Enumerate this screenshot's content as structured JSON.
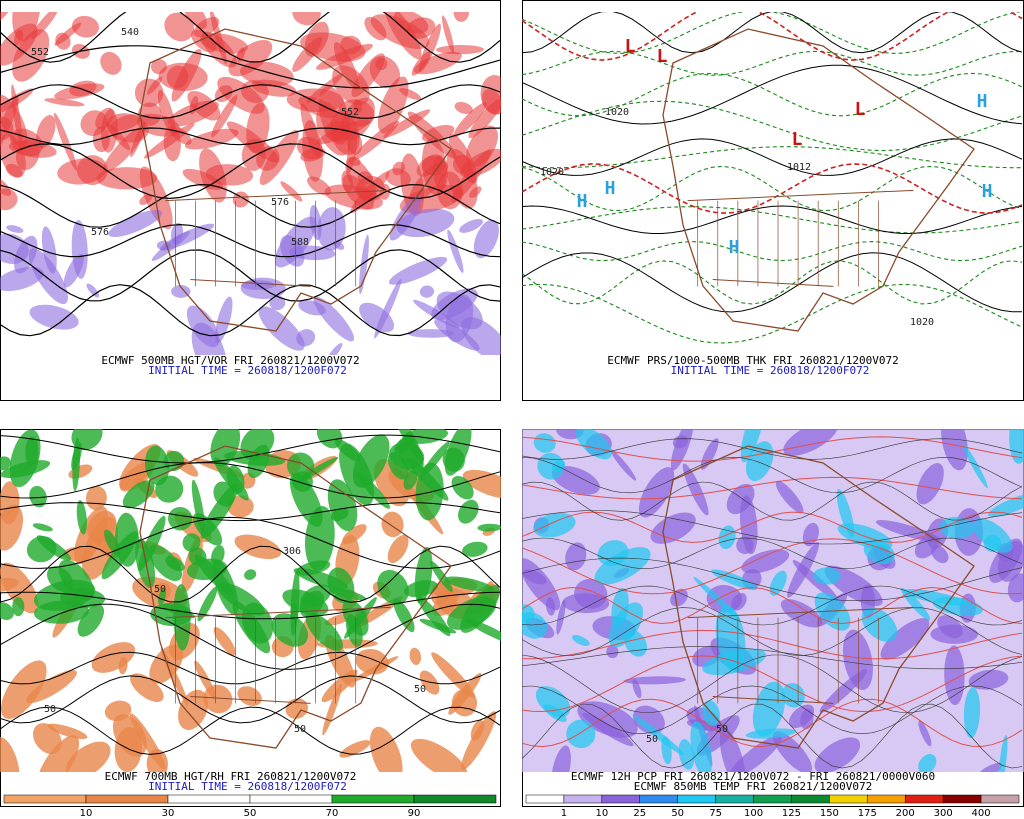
{
  "panels": [
    {
      "caption": "ECMWF 500MB HGT/VOR FRI 260821/1200V072",
      "initial_time": "INITIAL TIME = 260818/1200F072",
      "map_labels": [
        "552",
        "552",
        "576",
        "576",
        "588",
        "540"
      ]
    },
    {
      "caption": "ECMWF PRS/1000-500MB THK FRI 260821/1200V072",
      "initial_time": "INITIAL TIME = 260818/1200F072",
      "map_labels": [
        "H",
        "H",
        "H",
        "H",
        "H",
        "L",
        "L",
        "L",
        "L",
        "1020",
        "1012",
        "1020",
        "1020"
      ]
    },
    {
      "caption": "ECMWF 700MB HGT/RH FRI 260821/1200V072",
      "initial_time": "INITIAL TIME = 260818/1200F072",
      "map_labels": [
        "306",
        "50",
        "50",
        "50",
        "50"
      ],
      "colorbar": {
        "colors": [
          "#f2a366",
          "#e8864a",
          "#ffffff",
          "#ffffff",
          "#1faa2a",
          "#11882a"
        ],
        "labels": [
          10,
          30,
          50,
          70,
          90
        ]
      }
    },
    {
      "caption": "ECMWF 12H PCP FRI 260821/1200V072 - FRI 260821/0000V060",
      "caption2": "ECMWF 850MB TEMP FRI 260821/1200V072",
      "map_labels": [
        "50",
        "50"
      ],
      "colorbar": {
        "colors": [
          "#ffffff",
          "#c6b2ee",
          "#8a62dc",
          "#2e8cf0",
          "#1ec8f0",
          "#18b0a0",
          "#10a050",
          "#0a8a30",
          "#f0d000",
          "#f5a000",
          "#e02010",
          "#8a0000",
          "#c8a0a8"
        ],
        "labels": [
          1,
          10,
          25,
          50,
          75,
          100,
          125,
          150,
          175,
          200,
          300,
          400
        ]
      }
    }
  ]
}
